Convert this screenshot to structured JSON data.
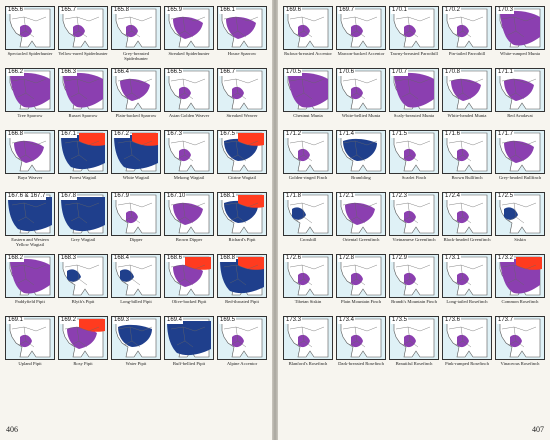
{
  "left_page": {
    "folio": "406",
    "maps": [
      {
        "num": "165.6",
        "caption": "Spectacled Spiderhunter",
        "range": "purple-s",
        "red": "",
        "blue": ""
      },
      {
        "num": "165.7",
        "caption": "Yellow-eared Spiderhunter",
        "range": "purple-s",
        "red": "",
        "blue": ""
      },
      {
        "num": "165.8",
        "caption": "Grey-breasted Spiderhunter",
        "range": "purple-s",
        "red": "",
        "blue": ""
      },
      {
        "num": "165.9",
        "caption": "Streaked Spiderhunter",
        "range": "purple-m",
        "red": "",
        "blue": ""
      },
      {
        "num": "166.1",
        "caption": "House Sparrow",
        "range": "purple-m",
        "red": "",
        "blue": ""
      },
      {
        "num": "166.2",
        "caption": "Tree Sparrow",
        "range": "purple-l",
        "red": "",
        "blue": ""
      },
      {
        "num": "166.3",
        "caption": "Russet Sparrow",
        "range": "purple-l",
        "red": "",
        "blue": ""
      },
      {
        "num": "166.4",
        "caption": "Plain-backed Sparrow",
        "range": "purple-m",
        "red": "",
        "blue": ""
      },
      {
        "num": "166.5",
        "caption": "Asian Golden Weaver",
        "range": "purple-s",
        "red": "",
        "blue": ""
      },
      {
        "num": "166.7",
        "caption": "Streaked Weaver",
        "range": "purple-s",
        "red": "",
        "blue": ""
      },
      {
        "num": "166.8",
        "caption": "Baya Weaver",
        "range": "purple-m",
        "red": "",
        "blue": ""
      },
      {
        "num": "167.1",
        "caption": "Forest Wagtail",
        "range": "blue-l",
        "red": "top",
        "blue": ""
      },
      {
        "num": "167.2",
        "caption": "White Wagtail",
        "range": "blue-l",
        "red": "top",
        "blue": ""
      },
      {
        "num": "167.3",
        "caption": "Mekong Wagtail",
        "range": "purple-s",
        "red": "",
        "blue": ""
      },
      {
        "num": "167.5",
        "caption": "Citrine Wagtail",
        "range": "blue-m",
        "red": "top",
        "blue": ""
      },
      {
        "num": "167.6 & 167.7",
        "caption": "Eastern and Western Yellow Wagtail",
        "range": "blue-l",
        "red": "",
        "blue": ""
      },
      {
        "num": "167.8",
        "caption": "Grey Wagtail",
        "range": "blue-l",
        "red": "",
        "blue": ""
      },
      {
        "num": "167.9",
        "caption": "Dipper",
        "range": "purple-s",
        "red": "",
        "blue": ""
      },
      {
        "num": "167.10",
        "caption": "Brown Dipper",
        "range": "purple-m",
        "red": "",
        "blue": ""
      },
      {
        "num": "168.1",
        "caption": "Richard's Pipit",
        "range": "blue-m",
        "red": "top",
        "blue": ""
      },
      {
        "num": "168.2",
        "caption": "Paddyfield Pipit",
        "range": "purple-l",
        "red": "",
        "blue": ""
      },
      {
        "num": "168.3",
        "caption": "Blyth's Pipit",
        "range": "blue-s",
        "red": "",
        "blue": ""
      },
      {
        "num": "168.4",
        "caption": "Long-billed Pipit",
        "range": "blue-s",
        "red": "",
        "blue": ""
      },
      {
        "num": "168.6",
        "caption": "Olive-backed Pipit",
        "range": "purple-m",
        "red": "top",
        "blue": ""
      },
      {
        "num": "168.8",
        "caption": "Red-throated Pipit",
        "range": "blue-l",
        "red": "top",
        "blue": ""
      },
      {
        "num": "169.1",
        "caption": "Upland Pipit",
        "range": "purple-s",
        "red": "",
        "blue": ""
      },
      {
        "num": "169.2",
        "caption": "Rosy Pipit",
        "range": "purple-m",
        "red": "top",
        "blue": ""
      },
      {
        "num": "169.3",
        "caption": "Water Pipit",
        "range": "blue-m",
        "red": "",
        "blue": ""
      },
      {
        "num": "169.4",
        "caption": "Buff-bellied Pipit",
        "range": "blue-l",
        "red": "",
        "blue": ""
      },
      {
        "num": "169.5",
        "caption": "Alpine Accentor",
        "range": "purple-s",
        "red": "",
        "blue": ""
      }
    ]
  },
  "right_page": {
    "folio": "407",
    "maps": [
      {
        "num": "169.6",
        "caption": "Rufous-breasted Accentor",
        "range": "purple-s",
        "red": "",
        "blue": ""
      },
      {
        "num": "169.7",
        "caption": "Maroon-backed Accentor",
        "range": "purple-s",
        "red": "",
        "blue": ""
      },
      {
        "num": "170.1",
        "caption": "Tawny-breasted Parrotbill",
        "range": "purple-s",
        "red": "",
        "blue": ""
      },
      {
        "num": "170.2",
        "caption": "Pin-tailed Parrotbill",
        "range": "purple-s",
        "red": "",
        "blue": ""
      },
      {
        "num": "170.3",
        "caption": "White-rumped Munia",
        "range": "purple-l",
        "red": "",
        "blue": ""
      },
      {
        "num": "170.5",
        "caption": "Chestnut Munia",
        "range": "purple-l",
        "red": "",
        "blue": ""
      },
      {
        "num": "170.6",
        "caption": "White-bellied Munia",
        "range": "purple-s",
        "red": "",
        "blue": ""
      },
      {
        "num": "170.7",
        "caption": "Scaly-breasted Munia",
        "range": "purple-l",
        "red": "",
        "blue": ""
      },
      {
        "num": "170.8",
        "caption": "White-headed Munia",
        "range": "purple-m",
        "red": "",
        "blue": ""
      },
      {
        "num": "171.1",
        "caption": "Red Avadavat",
        "range": "purple-m",
        "red": "",
        "blue": ""
      },
      {
        "num": "171.2",
        "caption": "Golden-ringed Finch",
        "range": "purple-s",
        "red": "",
        "blue": ""
      },
      {
        "num": "171.4",
        "caption": "Brambling",
        "range": "blue-m",
        "red": "",
        "blue": ""
      },
      {
        "num": "171.5",
        "caption": "Scarlet Finch",
        "range": "purple-s",
        "red": "",
        "blue": ""
      },
      {
        "num": "171.6",
        "caption": "Brown Bullfinch",
        "range": "purple-s",
        "red": "",
        "blue": ""
      },
      {
        "num": "171.7",
        "caption": "Grey-headed Bullfinch",
        "range": "purple-m",
        "red": "",
        "blue": ""
      },
      {
        "num": "171.8",
        "caption": "Crossbill",
        "range": "blue-s",
        "red": "",
        "blue": ""
      },
      {
        "num": "172.1",
        "caption": "Oriental Greenfinch",
        "range": "purple-m",
        "red": "",
        "blue": ""
      },
      {
        "num": "172.3",
        "caption": "Vietnamese Greenfinch",
        "range": "purple-s",
        "red": "",
        "blue": ""
      },
      {
        "num": "172.4",
        "caption": "Black-headed Greenfinch",
        "range": "purple-s",
        "red": "",
        "blue": ""
      },
      {
        "num": "172.5",
        "caption": "Siskin",
        "range": "blue-s",
        "red": "",
        "blue": ""
      },
      {
        "num": "172.6",
        "caption": "Tibetan Siskin",
        "range": "purple-s",
        "red": "",
        "blue": ""
      },
      {
        "num": "172.8",
        "caption": "Plain Mountain Finch",
        "range": "purple-s",
        "red": "",
        "blue": ""
      },
      {
        "num": "172.9",
        "caption": "Brandt's Mountain Finch",
        "range": "purple-s",
        "red": "",
        "blue": ""
      },
      {
        "num": "173.1",
        "caption": "Long-tailed Rosefinch",
        "range": "purple-s",
        "red": "",
        "blue": ""
      },
      {
        "num": "173.2",
        "caption": "Common Rosefinch",
        "range": "purple-l",
        "red": "top",
        "blue": ""
      },
      {
        "num": "173.3",
        "caption": "Blanford's Rosefinch",
        "range": "purple-s",
        "red": "",
        "blue": ""
      },
      {
        "num": "173.4",
        "caption": "Dark-breasted Rosefinch",
        "range": "purple-s",
        "red": "",
        "blue": ""
      },
      {
        "num": "173.5",
        "caption": "Beautiful Rosefinch",
        "range": "purple-s",
        "red": "",
        "blue": ""
      },
      {
        "num": "173.6",
        "caption": "Pink-rumped Rosefinch",
        "range": "purple-s",
        "red": "",
        "blue": ""
      },
      {
        "num": "173.7",
        "caption": "Vinaceous Rosefinch",
        "range": "purple-s",
        "red": "",
        "blue": ""
      }
    ]
  },
  "colors": {
    "resident": "#8b3fb0",
    "winter": "#1f3f8c",
    "breeding": "#ff3b1f",
    "sea": "#dff1f6",
    "land": "#ffffff"
  }
}
